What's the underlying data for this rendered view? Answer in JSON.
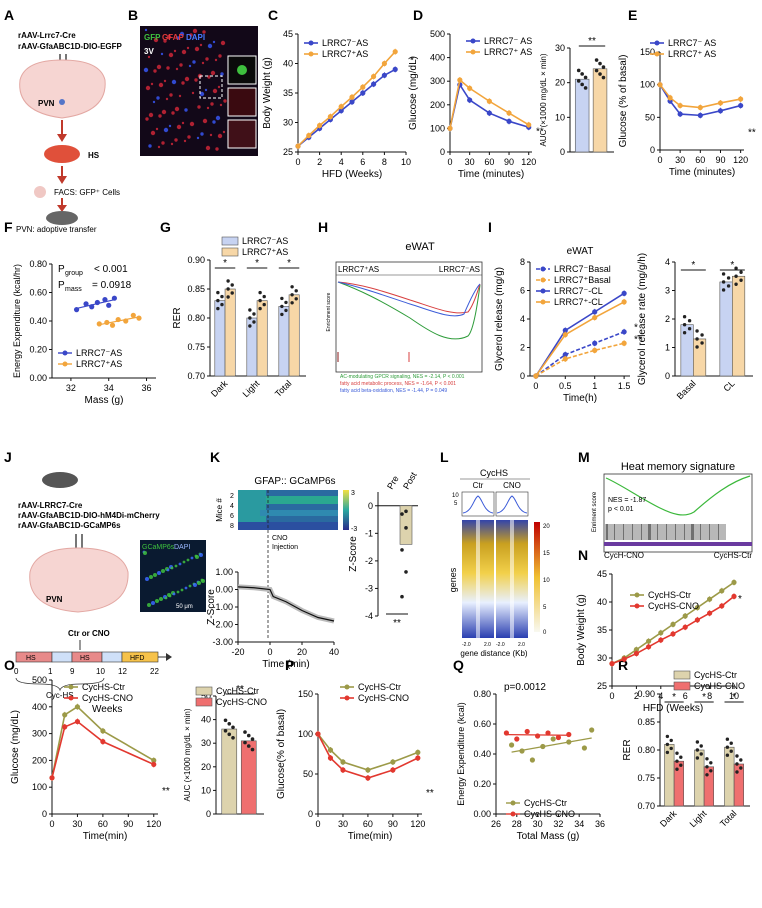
{
  "panel_letters": [
    "A",
    "B",
    "C",
    "D",
    "E",
    "F",
    "G",
    "H",
    "I",
    "J",
    "K",
    "L",
    "M",
    "N",
    "O",
    "P",
    "Q",
    "R"
  ],
  "colors": {
    "blue": "#3a47c8",
    "orange": "#f2a53c",
    "olive": "#9c9a48",
    "red": "#e2382f",
    "lightblue": "#c7d3f2",
    "lightorange": "#f7d7a7",
    "tan": "#ddd3ad",
    "pink": "#ef6f6f"
  },
  "panelA": {
    "text1": "rAAV-Lrrc7-Cre",
    "text2": "rAAV-GfaABC1D-DIO-EGFP",
    "region": "PVN",
    "hs": "HS",
    "facs": "FACS: GFP⁺ Cells",
    "transfer": "PVN: adoptive transfer"
  },
  "panelB": {
    "label_gfp": "GFP",
    "label_gfap": "GFAP",
    "label_dapi": "DAPI",
    "region": "3V"
  },
  "panelJ": {
    "text1": "rAAV-LRRC7-Cre",
    "text2": "rAAV-GfaABC1D-DIO-hM4Di-mCherry",
    "text3": "rAAV-GfaABC1D-GCaMP6s",
    "region": "PVN",
    "micro_label1": "GCaMP6s",
    "micro_label2": "DAPI",
    "scale": "50 μm",
    "treat": "Ctr or CNO",
    "hs1": "HS",
    "hs2": "HS",
    "hfd": "HFD",
    "ticks": [
      "0",
      "1",
      "9",
      "10",
      "12",
      "22"
    ],
    "cyc": "Cyc-HS",
    "weeks": "Weeks"
  },
  "panelH": {
    "title": "eWAT",
    "left": "LRRC7⁺AS",
    "right": "LRRC7⁻AS",
    "ylabel": "Enrichment score",
    "legend": [
      "AC-modulating GPCR signaling, NES = -2.14, P < 0.001",
      "fatty acid metabolic process, NES = -1.64, P < 0.001",
      "fatty acid beta-oxidation, NES = -1.44, P = 0.049"
    ]
  },
  "panelK": {
    "heat_title": "GFAP:: GCaMP6s",
    "mice_label": "Mice #",
    "mice_ticks": [
      "2",
      "4",
      "6",
      "8"
    ],
    "scale_ticks": [
      "3",
      "-3"
    ],
    "cno": "CNO",
    "injection": "Injection",
    "xlabel": "Time (min)",
    "ylabel": "Z-Score",
    "sig": "**",
    "pre": "Pre",
    "post": "Post"
  },
  "panelL": {
    "title": "CycHS",
    "col1": "Ctr",
    "col2": "CNO",
    "ylabel": "genes",
    "xlabel": "gene distance (Kb)",
    "ticks": [
      "-2.0",
      "2.0",
      "-2.0",
      "2.0"
    ],
    "scale": [
      "20",
      "15",
      "10",
      "5",
      "0"
    ],
    "prof": [
      "10",
      "5"
    ]
  },
  "panelM": {
    "title": "Heat memory signature",
    "ylabel": "Enriment score",
    "nes": "NES = -1.87",
    "p": "p < 0.01",
    "left": "CycH-CNO",
    "right": "CycHS-Ctr"
  },
  "chart_data": [
    {
      "id": "C",
      "type": "line",
      "xlabel": "HFD (Weeks)",
      "ylabel": "Body Weight (g)",
      "xlim": [
        0,
        10
      ],
      "ylim": [
        25,
        45
      ],
      "xticks": [
        0,
        2,
        4,
        6,
        8,
        10
      ],
      "yticks": [
        25,
        30,
        35,
        40,
        45
      ],
      "sig": "*",
      "series": [
        {
          "name": "LRRC7⁻AS",
          "color": "#3a47c8",
          "x": [
            0,
            1,
            2,
            3,
            4,
            5,
            6,
            7,
            8,
            9
          ],
          "y": [
            26,
            27.5,
            29,
            30.5,
            32,
            33.5,
            35,
            36.5,
            38,
            39
          ]
        },
        {
          "name": "LRRC7⁺AS",
          "color": "#f2a53c",
          "x": [
            0,
            1,
            2,
            3,
            4,
            5,
            6,
            7,
            8,
            9
          ],
          "y": [
            26,
            27.8,
            29.5,
            31,
            32.7,
            34.3,
            36,
            37.8,
            40,
            42
          ]
        }
      ]
    },
    {
      "id": "D",
      "type": "line",
      "xlabel": "Time (minutes)",
      "ylabel": "Glucose (mg/dL)",
      "xlim": [
        0,
        125
      ],
      "ylim": [
        0,
        500
      ],
      "xticks": [
        0,
        30,
        60,
        90,
        120
      ],
      "yticks": [
        0,
        100,
        200,
        300,
        400,
        500
      ],
      "sig": "**",
      "series": [
        {
          "name": "LRRC7⁻ AS",
          "color": "#3a47c8",
          "x": [
            0,
            15,
            30,
            60,
            90,
            120
          ],
          "y": [
            100,
            285,
            220,
            165,
            130,
            105
          ]
        },
        {
          "name": "LRRC7⁺ AS",
          "color": "#f2a53c",
          "x": [
            0,
            15,
            30,
            60,
            90,
            120
          ],
          "y": [
            100,
            305,
            270,
            215,
            165,
            115
          ]
        }
      ]
    },
    {
      "id": "D2",
      "type": "bar",
      "ylabel": "AUC (×1000 mg/dL × min)",
      "ylim": [
        0,
        30
      ],
      "yticks": [
        0,
        10,
        20,
        30
      ],
      "sig": "**",
      "series": [
        {
          "name": "LRRC7⁻ AS",
          "color": "#c7d3f2",
          "values": [
            21
          ]
        },
        {
          "name": "LRRC7⁺ AS",
          "color": "#f7d7a7",
          "values": [
            24
          ]
        }
      ]
    },
    {
      "id": "E",
      "type": "line",
      "xlabel": "Time (minutes)",
      "ylabel": "Glucose (% of basal)",
      "xlim": [
        0,
        125
      ],
      "ylim": [
        0,
        150
      ],
      "xticks": [
        0,
        30,
        60,
        90,
        120
      ],
      "yticks": [
        0,
        50,
        100,
        150
      ],
      "sig": "**",
      "series": [
        {
          "name": "LRRC7⁻ AS",
          "color": "#3a47c8",
          "x": [
            0,
            15,
            30,
            60,
            90,
            120
          ],
          "y": [
            100,
            75,
            55,
            53,
            60,
            68
          ]
        },
        {
          "name": "LRRC7⁺ AS",
          "color": "#f2a53c",
          "x": [
            0,
            15,
            30,
            60,
            90,
            120
          ],
          "y": [
            100,
            80,
            68,
            65,
            72,
            78
          ]
        }
      ]
    },
    {
      "id": "F",
      "type": "scatter",
      "xlabel": "Mass (g)",
      "ylabel": "Energy Expenditure (kcal/hr)",
      "xlim": [
        31,
        36.5
      ],
      "ylim": [
        0,
        0.8
      ],
      "xticks": [
        32,
        34,
        36
      ],
      "yticks": [
        0.0,
        0.2,
        0.4,
        0.6,
        0.8
      ],
      "annotations": [
        "P",
        "group",
        "< 0.001",
        "P",
        "mass",
        "= 0.0918"
      ],
      "series": [
        {
          "name": "LRRC7⁻AS",
          "color": "#3a47c8",
          "x": [
            32.3,
            32.8,
            33.1,
            33.4,
            33.8,
            34.0,
            34.3
          ],
          "y": [
            0.48,
            0.52,
            0.5,
            0.53,
            0.55,
            0.51,
            0.56
          ]
        },
        {
          "name": "LRRC7⁺AS",
          "color": "#f2a53c",
          "x": [
            33.5,
            33.9,
            34.2,
            34.5,
            34.9,
            35.3,
            35.6
          ],
          "y": [
            0.38,
            0.39,
            0.37,
            0.41,
            0.4,
            0.44,
            0.42
          ]
        }
      ]
    },
    {
      "id": "G",
      "type": "bar",
      "ylabel": "RER",
      "ylim": [
        0.7,
        0.9
      ],
      "yticks": [
        0.7,
        0.75,
        0.8,
        0.85,
        0.9
      ],
      "categories": [
        "Dark",
        "Light",
        "Total"
      ],
      "sig": [
        "*",
        "*",
        "*"
      ],
      "series": [
        {
          "name": "LRRC7⁻AS",
          "color": "#c7d3f2",
          "values": [
            0.83,
            0.8,
            0.82
          ]
        },
        {
          "name": "LRRC7⁺AS",
          "color": "#f7d7a7",
          "values": [
            0.85,
            0.83,
            0.84
          ]
        }
      ]
    },
    {
      "id": "I",
      "type": "line",
      "title": "eWAT",
      "xlabel": "Time(h)",
      "ylabel": "Glycerol release (mg/g)",
      "xlim": [
        -0.1,
        1.6
      ],
      "ylim": [
        0,
        8
      ],
      "xticks": [
        0,
        0.5,
        1,
        1.5
      ],
      "xticklabels": [
        "0",
        "0.5",
        "1",
        "1.5"
      ],
      "yticks": [
        0,
        2,
        4,
        6,
        8
      ],
      "sig": [
        "*",
        "**"
      ],
      "series": [
        {
          "name": "LRRC7⁻Basal",
          "color": "#3a47c8",
          "dash": true,
          "x": [
            0,
            0.5,
            1,
            1.5
          ],
          "y": [
            0,
            1.5,
            2.3,
            3.1
          ]
        },
        {
          "name": "LRRC7⁺Basal",
          "color": "#f2a53c",
          "dash": true,
          "x": [
            0,
            0.5,
            1,
            1.5
          ],
          "y": [
            0,
            1.2,
            1.8,
            2.3
          ]
        },
        {
          "name": "LRRC7⁻-CL",
          "color": "#3a47c8",
          "dash": false,
          "x": [
            0,
            0.5,
            1,
            1.5
          ],
          "y": [
            0,
            3.2,
            4.5,
            5.8
          ]
        },
        {
          "name": "LRRC7⁺-CL",
          "color": "#f2a53c",
          "dash": false,
          "x": [
            0,
            0.5,
            1,
            1.5
          ],
          "y": [
            0,
            2.9,
            4.1,
            5.2
          ]
        }
      ]
    },
    {
      "id": "I2",
      "type": "bar",
      "ylabel": "Glycerol release rate (mg/g/h)",
      "ylim": [
        0,
        4
      ],
      "yticks": [
        0,
        1,
        2,
        3,
        4
      ],
      "categories": [
        "Basal",
        "CL"
      ],
      "sig": "*",
      "series": [
        {
          "name": "LRRC7⁻",
          "color": "#c7d3f2",
          "values": [
            1.8,
            3.3
          ]
        },
        {
          "name": "LRRC7⁺",
          "color": "#f7d7a7",
          "values": [
            1.3,
            3.5
          ]
        }
      ]
    },
    {
      "id": "K",
      "type": "line",
      "xlabel": "Time (min)",
      "ylabel": "Z-Score",
      "xlim": [
        -20,
        40
      ],
      "ylim": [
        -3,
        1
      ],
      "xticks": [
        -20,
        0,
        20,
        40
      ],
      "yticks": [
        -3,
        -2,
        -1,
        0,
        1
      ],
      "series": [
        {
          "name": "GCaMP6s",
          "color": "#111111",
          "x": [
            -20,
            -10,
            0,
            2,
            10,
            20,
            30,
            40
          ],
          "y": [
            0.15,
            0.1,
            0,
            -0.4,
            -0.7,
            -1.2,
            -1.6,
            -1.8
          ]
        }
      ]
    },
    {
      "id": "K2",
      "type": "bar",
      "ylabel": "Z-Score",
      "ylim": [
        -4,
        0.5
      ],
      "yticks": [
        -4,
        -3,
        -2,
        -1,
        0
      ],
      "categories": [
        "Pre",
        "Post"
      ],
      "values": [
        0,
        -1.4
      ],
      "sig": "**"
    },
    {
      "id": "N",
      "type": "line",
      "xlabel": "HFD (Weeks)",
      "ylabel": "Body Weight (g)",
      "xlim": [
        0,
        10
      ],
      "ylim": [
        25,
        45
      ],
      "xticks": [
        0,
        2,
        4,
        6,
        8,
        10
      ],
      "yticks": [
        25,
        30,
        35,
        40,
        45
      ],
      "sig": "*",
      "series": [
        {
          "name": "CycHS-Ctr",
          "color": "#9c9a48",
          "x": [
            0,
            1,
            2,
            3,
            4,
            5,
            6,
            7,
            8,
            9,
            10
          ],
          "y": [
            29,
            30,
            31.5,
            33,
            34.5,
            36,
            37.5,
            39,
            40.5,
            42,
            43.5
          ]
        },
        {
          "name": "CycHS-CNO",
          "color": "#e2382f",
          "x": [
            0,
            1,
            2,
            3,
            4,
            5,
            6,
            7,
            8,
            9,
            10
          ],
          "y": [
            29,
            29.8,
            30.8,
            32,
            33.2,
            34.3,
            35.5,
            36.8,
            38,
            39.3,
            41
          ]
        }
      ]
    },
    {
      "id": "O",
      "type": "line",
      "xlabel": "Time(min)",
      "ylabel": "Glucose (mg/dL)",
      "xlim": [
        0,
        125
      ],
      "ylim": [
        0,
        500
      ],
      "xticks": [
        0,
        30,
        60,
        90,
        120
      ],
      "yticks": [
        0,
        100,
        200,
        300,
        400,
        500
      ],
      "sig": "**",
      "series": [
        {
          "name": "CycHS-Ctr",
          "color": "#9c9a48",
          "x": [
            0,
            15,
            30,
            60,
            120
          ],
          "y": [
            135,
            370,
            400,
            310,
            200
          ]
        },
        {
          "name": "CycHS-CNO",
          "color": "#e2382f",
          "x": [
            0,
            15,
            30,
            60,
            120
          ],
          "y": [
            135,
            325,
            345,
            270,
            185
          ]
        }
      ]
    },
    {
      "id": "O2",
      "type": "bar",
      "ylabel": "AUC (×1000 mg/dL × min)",
      "ylim": [
        0,
        50
      ],
      "yticks": [
        0,
        10,
        20,
        30,
        40,
        50
      ],
      "sig": "**",
      "series": [
        {
          "name": "CycHS-Ctr",
          "color": "#ddd3ad",
          "values": [
            36
          ]
        },
        {
          "name": "CycHS-CNO",
          "color": "#ef6f6f",
          "values": [
            31
          ]
        }
      ]
    },
    {
      "id": "P",
      "type": "line",
      "xlabel": "Time(min)",
      "ylabel": "Glucose(% of basal)",
      "xlim": [
        0,
        125
      ],
      "ylim": [
        0,
        150
      ],
      "xticks": [
        0,
        30,
        60,
        90,
        120
      ],
      "yticks": [
        0,
        50,
        100,
        150
      ],
      "sig": "**",
      "series": [
        {
          "name": "CycHS-Ctr",
          "color": "#9c9a48",
          "x": [
            0,
            15,
            30,
            60,
            90,
            120
          ],
          "y": [
            100,
            80,
            65,
            55,
            65,
            77
          ]
        },
        {
          "name": "CycHS-CNO",
          "color": "#e2382f",
          "x": [
            0,
            15,
            30,
            60,
            90,
            120
          ],
          "y": [
            100,
            70,
            55,
            45,
            55,
            70
          ]
        }
      ]
    },
    {
      "id": "Q",
      "type": "scatter",
      "xlabel": "Total Mass (g)",
      "ylabel": "Energy Expenditure (kcal)",
      "xlim": [
        26,
        36
      ],
      "ylim": [
        0,
        0.8
      ],
      "xticks": [
        26,
        28,
        30,
        32,
        34,
        36
      ],
      "yticks": [
        0.0,
        0.2,
        0.4,
        0.6,
        0.8
      ],
      "annotation": "p=0.0012",
      "series": [
        {
          "name": "CycHS-Ctr",
          "color": "#9c9a48",
          "x": [
            27.5,
            28.5,
            29.5,
            30.5,
            31.5,
            33.0,
            34.5,
            35.2
          ],
          "y": [
            0.46,
            0.42,
            0.36,
            0.45,
            0.5,
            0.48,
            0.44,
            0.56
          ]
        },
        {
          "name": "CycHS-CNO",
          "color": "#e2382f",
          "x": [
            27.0,
            28.0,
            29.0,
            30.0,
            31.0,
            32.0,
            33.0
          ],
          "y": [
            0.54,
            0.5,
            0.55,
            0.52,
            0.54,
            0.51,
            0.53
          ]
        }
      ]
    },
    {
      "id": "R",
      "type": "bar",
      "ylabel": "RER",
      "ylim": [
        0.7,
        0.9
      ],
      "yticks": [
        0.7,
        0.75,
        0.8,
        0.85,
        0.9
      ],
      "categories": [
        "Dark",
        "Light",
        "Total"
      ],
      "sig": [
        "*",
        "*",
        "*"
      ],
      "series": [
        {
          "name": "CycHS-Ctr",
          "color": "#ddd3ad",
          "values": [
            0.81,
            0.8,
            0.805
          ]
        },
        {
          "name": "CycHS-CNO",
          "color": "#ef6f6f",
          "values": [
            0.78,
            0.77,
            0.775
          ]
        }
      ]
    }
  ]
}
